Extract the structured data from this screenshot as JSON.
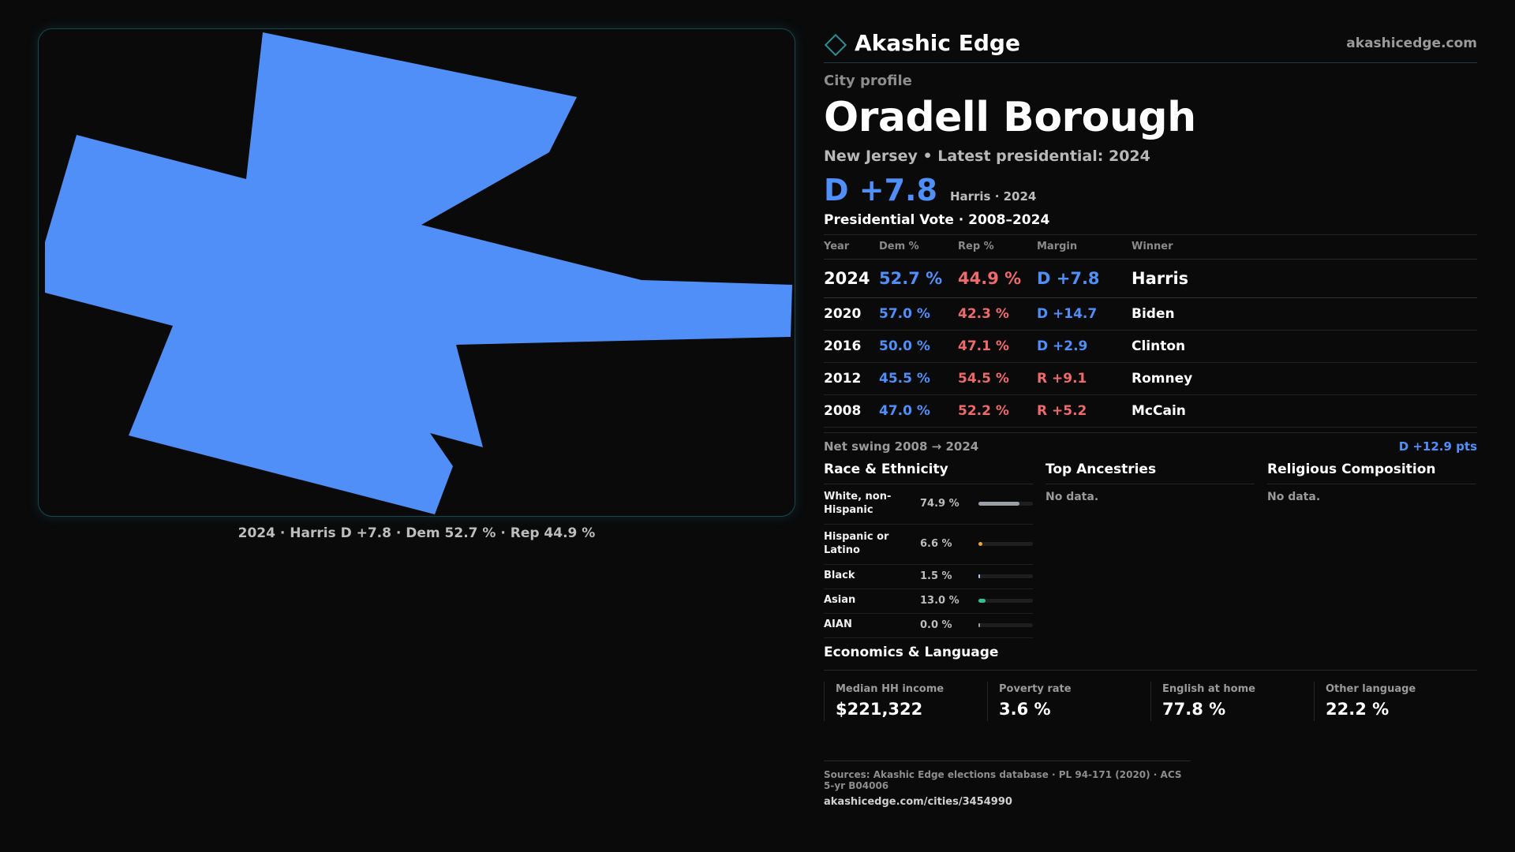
{
  "map": {
    "caption": "2024 · Harris D +7.8 · Dem 52.7 % · Rep 44.9 %",
    "fill_color": "#4f8ff7"
  },
  "brand": {
    "name": "Akashic Edge",
    "url": "akashicedge.com",
    "logo_icon": "diamond-icon"
  },
  "profile": {
    "kicker": "City profile",
    "city": "Oradell Borough",
    "subtitle": "New Jersey • Latest presidential: 2024",
    "headline_margin": "D +7.8",
    "headline_note": "Harris · 2024"
  },
  "votes": {
    "title": "Presidential Vote · 2008–2024",
    "headers": [
      "Year",
      "Dem %",
      "Rep %",
      "Margin",
      "Winner"
    ],
    "rows": [
      {
        "year": "2024",
        "dem": "52.7 %",
        "rep": "44.9 %",
        "margin": "D +7.8",
        "margin_party": "dem",
        "winner": "Harris"
      },
      {
        "year": "2020",
        "dem": "57.0 %",
        "rep": "42.3 %",
        "margin": "D +14.7",
        "margin_party": "dem",
        "winner": "Biden"
      },
      {
        "year": "2016",
        "dem": "50.0 %",
        "rep": "47.1 %",
        "margin": "D +2.9",
        "margin_party": "dem",
        "winner": "Clinton"
      },
      {
        "year": "2012",
        "dem": "45.5 %",
        "rep": "54.5 %",
        "margin": "R +9.1",
        "margin_party": "rep",
        "winner": "Romney"
      },
      {
        "year": "2008",
        "dem": "47.0 %",
        "rep": "52.2 %",
        "margin": "R +5.2",
        "margin_party": "rep",
        "winner": "McCain"
      }
    ],
    "swing_label": "Net swing 2008 → 2024",
    "swing_value": "D +12.9 pts"
  },
  "race": {
    "title": "Race & Ethnicity",
    "rows": [
      {
        "label": "White, non-Hispanic",
        "pct": "74.9 %",
        "value": 74.9,
        "color": "#9aa0a6"
      },
      {
        "label": "Hispanic or Latino",
        "pct": "6.6 %",
        "value": 6.6,
        "color": "#e8a33a"
      },
      {
        "label": "Black",
        "pct": "1.5 %",
        "value": 1.5,
        "color": "#a8c8ff"
      },
      {
        "label": "Asian",
        "pct": "13.0 %",
        "value": 13.0,
        "color": "#2fc28e"
      },
      {
        "label": "AIAN",
        "pct": "0.0 %",
        "value": 0.0,
        "color": "#9aa0a6"
      }
    ]
  },
  "ancestries": {
    "title": "Top Ancestries",
    "empty": "No data."
  },
  "religion": {
    "title": "Religious Composition",
    "empty": "No data."
  },
  "economics": {
    "title": "Economics & Language",
    "cards": [
      {
        "label": "Median HH income",
        "value": "$221,322"
      },
      {
        "label": "Poverty rate",
        "value": "3.6 %"
      },
      {
        "label": "English at home",
        "value": "77.8 %"
      },
      {
        "label": "Other language",
        "value": "22.2 %"
      }
    ]
  },
  "footer": {
    "sources": "Sources: Akashic Edge elections database · PL 94-171 (2020) · ACS 5-yr B04006",
    "url": "akashicedge.com/cities/3454990"
  }
}
